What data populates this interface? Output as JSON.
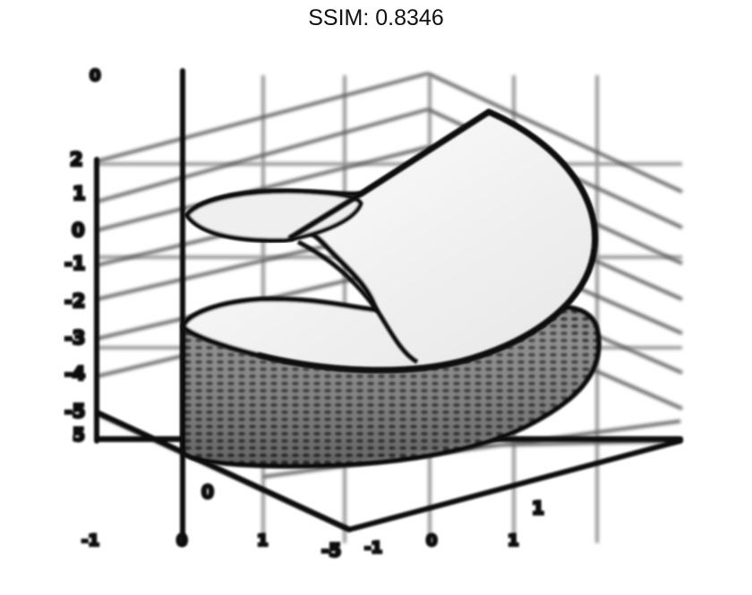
{
  "header": {
    "title": "SSIM: 0.8346"
  },
  "figure": {
    "kind": "3D helicoid surface render (blurred reconstruction)",
    "colors": {
      "background": "#ffffff",
      "frame": "#111111",
      "grid": "#9a9a9a",
      "surface_light": "#f2f2f2",
      "surface_dark": "#3a3a3a"
    },
    "tick_labels": {
      "z_axis_left": [
        "2",
        "1",
        "0",
        "-1",
        "-2",
        "-3",
        "-4",
        "-5"
      ],
      "bottom_left": [
        "-1",
        "0",
        "1"
      ],
      "bottom_right": [
        "-1",
        "0",
        "1"
      ],
      "depth_axis": [
        "0",
        "1"
      ],
      "corner": [
        "0",
        "5",
        "-5"
      ]
    }
  }
}
